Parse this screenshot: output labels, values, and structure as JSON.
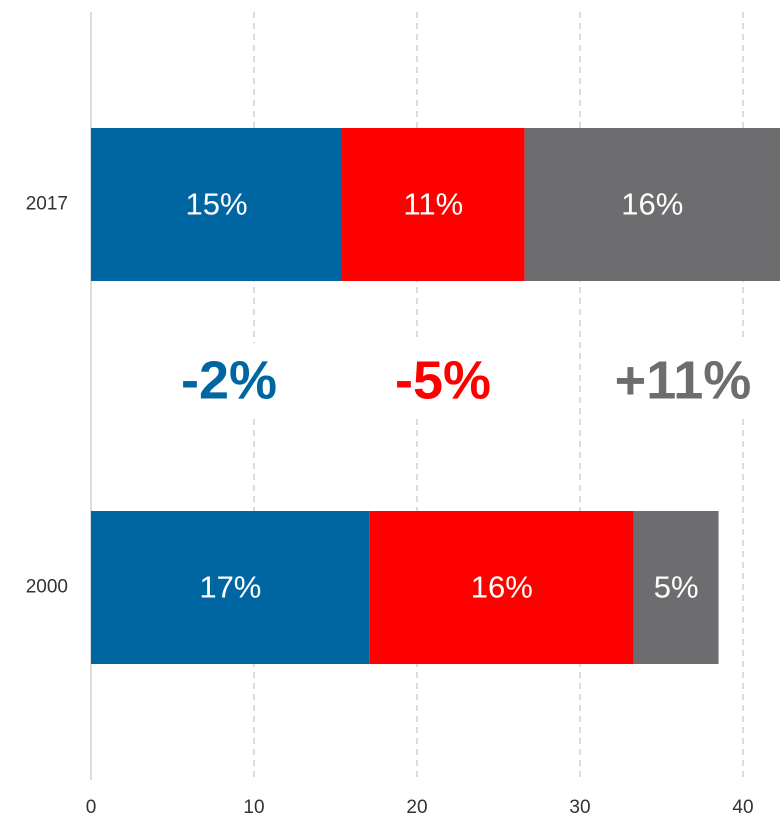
{
  "chart_data": {
    "type": "stacked_barh",
    "categories": [
      "2017",
      "2000"
    ],
    "series": [
      {
        "color": "#0066a1",
        "values": [
          15.4,
          17.1
        ],
        "value_labels": [
          "15%",
          "17%"
        ]
      },
      {
        "color": "#ff0000",
        "values": [
          11.2,
          16.2
        ],
        "value_labels": [
          "11%",
          "16%"
        ]
      },
      {
        "color": "#6d6d70",
        "values": [
          15.7,
          5.2
        ],
        "value_labels": [
          "16%",
          "5%"
        ]
      }
    ],
    "xlim": [
      0,
      42.27
    ],
    "xticks": [
      0,
      10,
      20,
      30,
      40
    ],
    "grid": true,
    "annotations": [
      {
        "text": "-2%",
        "color": "#0066a1"
      },
      {
        "text": "-5%",
        "color": "#ff0000"
      },
      {
        "text": "+11%",
        "color": "#6d6d70"
      }
    ]
  }
}
